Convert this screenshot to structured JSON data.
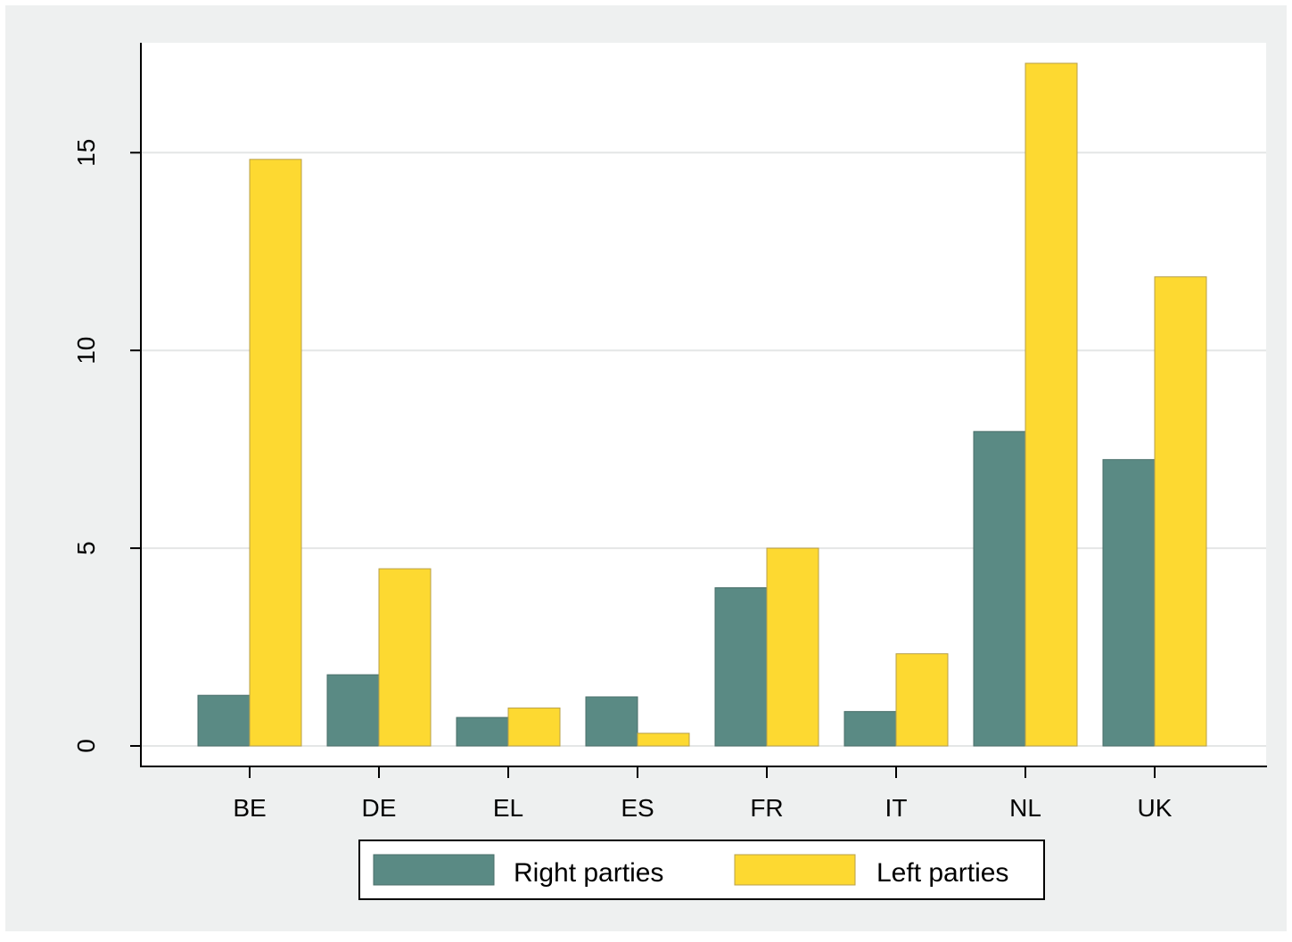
{
  "chart_data": {
    "type": "bar",
    "title": "",
    "xlabel": "",
    "ylabel": "",
    "categories": [
      "BE",
      "DE",
      "EL",
      "ES",
      "FR",
      "IT",
      "NL",
      "UK"
    ],
    "series": [
      {
        "name": "Right parties",
        "color": "#5a8a84",
        "values": [
          1.28,
          1.8,
          0.72,
          1.24,
          4.0,
          0.87,
          7.95,
          7.24
        ]
      },
      {
        "name": "Left parties",
        "color": "#fdd931",
        "values": [
          14.83,
          4.48,
          0.96,
          0.32,
          5.0,
          2.33,
          17.26,
          11.86
        ]
      }
    ],
    "ylim": [
      0,
      17.26
    ],
    "yticks": [
      0,
      5,
      10,
      15
    ],
    "grid": true,
    "legend_position": "bottom"
  }
}
